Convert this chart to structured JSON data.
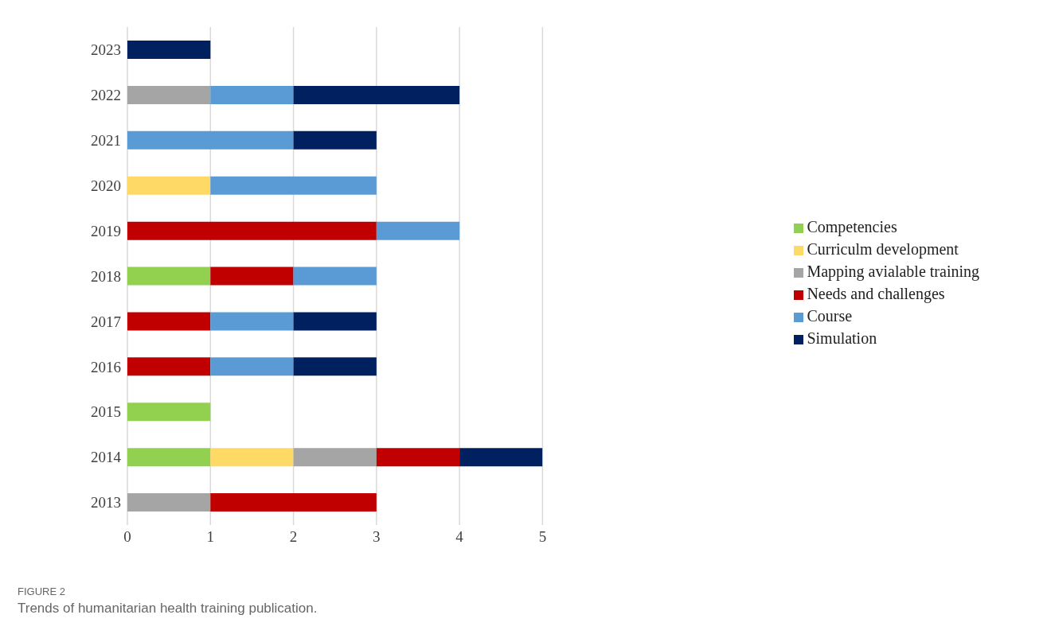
{
  "chart_data": {
    "type": "bar",
    "orientation": "horizontal",
    "stacked": true,
    "categories": [
      "2023",
      "2022",
      "2021",
      "2020",
      "2019",
      "2018",
      "2017",
      "2016",
      "2015",
      "2014",
      "2013"
    ],
    "series": [
      {
        "name": "Competencies",
        "color": "#92d050",
        "values": [
          null,
          null,
          null,
          null,
          null,
          1,
          null,
          null,
          1,
          1,
          null
        ]
      },
      {
        "name": "Curriculm development",
        "color": "#ffd966",
        "values": [
          null,
          null,
          null,
          1,
          null,
          null,
          null,
          null,
          null,
          1,
          null
        ]
      },
      {
        "name": "Mapping avialable training",
        "color": "#a5a5a5",
        "values": [
          null,
          1,
          null,
          null,
          null,
          null,
          null,
          null,
          null,
          1,
          1
        ]
      },
      {
        "name": "Needs and challenges",
        "color": "#c00000",
        "values": [
          null,
          null,
          null,
          null,
          3,
          1,
          1,
          1,
          null,
          1,
          2
        ]
      },
      {
        "name": "Course",
        "color": "#5b9bd5",
        "values": [
          null,
          1,
          2,
          2,
          1,
          1,
          1,
          1,
          null,
          null,
          null
        ]
      },
      {
        "name": "Simulation",
        "color": "#002060",
        "values": [
          1,
          2,
          1,
          null,
          null,
          null,
          1,
          1,
          null,
          1,
          null
        ]
      }
    ],
    "xlim": [
      0,
      5
    ],
    "xticks": [
      0,
      1,
      2,
      3,
      4,
      5
    ],
    "grid": "x",
    "legend": "right",
    "annotations": [
      "FIGURE 2",
      "Trends of humanitarian health training publication."
    ]
  }
}
